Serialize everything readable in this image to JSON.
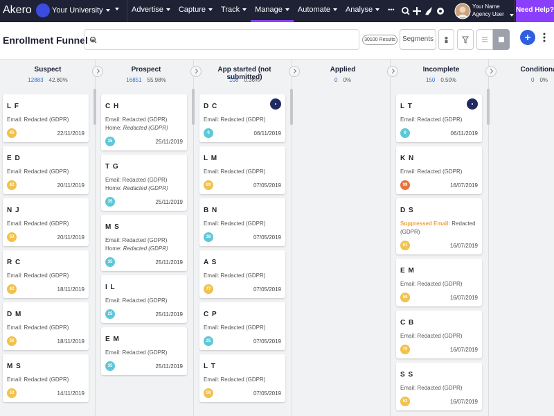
{
  "nav": {
    "logo": "Akero",
    "university": "Your University",
    "dot": ".",
    "menu": [
      {
        "label": "Advertise",
        "active": false
      },
      {
        "label": "Capture",
        "active": false
      },
      {
        "label": "Track",
        "active": false
      },
      {
        "label": "Manage",
        "active": true
      },
      {
        "label": "Automate",
        "active": false
      },
      {
        "label": "Analyse",
        "active": false
      }
    ],
    "more": "•••",
    "user_name": "Your Name",
    "user_role": "Agency User",
    "help": "Need Help?"
  },
  "toolbar": {
    "title": "Enrollment Funnel",
    "results": "30100 Results",
    "segments": "Segments"
  },
  "columns": [
    {
      "name": "Suspect",
      "count": "12883",
      "percent": "42.80%",
      "cards": [
        {
          "initials": "L F",
          "lines": [
            {
              "label": "Email:",
              "value": "Redacted (GDPR)"
            }
          ],
          "score": "45",
          "score_color": "#f2c14e",
          "date": "22/11/2019"
        },
        {
          "initials": "E D",
          "lines": [
            {
              "label": "Email:",
              "value": "Redacted (GDPR)"
            }
          ],
          "score": "62",
          "score_color": "#f2c14e",
          "date": "20/11/2019"
        },
        {
          "initials": "N J",
          "lines": [
            {
              "label": "Email:",
              "value": "Redacted (GDPR)"
            }
          ],
          "score": "53",
          "score_color": "#f2c14e",
          "date": "20/11/2019"
        },
        {
          "initials": "R C",
          "lines": [
            {
              "label": "Email:",
              "value": "Redacted (GDPR)"
            }
          ],
          "score": "62",
          "score_color": "#f2c14e",
          "date": "18/11/2019"
        },
        {
          "initials": "D M",
          "lines": [
            {
              "label": "Email:",
              "value": "Redacted (GDPR)"
            }
          ],
          "score": "56",
          "score_color": "#f2c14e",
          "date": "18/11/2019"
        },
        {
          "initials": "M S",
          "lines": [
            {
              "label": "Email:",
              "value": "Redacted (GDPR)"
            }
          ],
          "score": "53",
          "score_color": "#f2c14e",
          "date": "14/11/2019"
        }
      ]
    },
    {
      "name": "Prospect",
      "count": "16851",
      "percent": "55.98%",
      "cards": [
        {
          "initials": "C H",
          "lines": [
            {
              "label": "Email:",
              "value": "Redacted (GDPR)"
            },
            {
              "label": "Home:",
              "value": "Redacted (GDPR)",
              "italic": true
            }
          ],
          "score": "35",
          "score_color": "#5ec8d8",
          "date": "25/11/2019"
        },
        {
          "initials": "T G",
          "lines": [
            {
              "label": "Email:",
              "value": "Redacted (GDPR)"
            },
            {
              "label": "Home:",
              "value": "Redacted (GDPR)",
              "italic": true
            }
          ],
          "score": "35",
          "score_color": "#5ec8d8",
          "date": "25/11/2019"
        },
        {
          "initials": "M S",
          "lines": [
            {
              "label": "Email:",
              "value": "Redacted (GDPR)"
            },
            {
              "label": "Home:",
              "value": "Redacted (GDPR)",
              "italic": true
            }
          ],
          "score": "35",
          "score_color": "#5ec8d8",
          "date": "25/11/2019"
        },
        {
          "initials": "I L",
          "lines": [
            {
              "label": "Email:",
              "value": "Redacted (GDPR)"
            }
          ],
          "score": "25",
          "score_color": "#5ec8d8",
          "date": "25/11/2019"
        },
        {
          "initials": "E M",
          "lines": [
            {
              "label": "Email:",
              "value": "Redacted (GDPR)"
            }
          ],
          "score": "35",
          "score_color": "#5ec8d8",
          "date": "25/11/2019"
        }
      ]
    },
    {
      "name": "App started (not submitted)",
      "count": "108",
      "percent": "0.36%",
      "cards": [
        {
          "initials": "D C",
          "indicator": true,
          "lines": [
            {
              "label": "Email:",
              "value": "Redacted (GDPR)"
            }
          ],
          "score": "0",
          "score_color": "#5ec8d8",
          "date": "06/11/2019"
        },
        {
          "initials": "L M",
          "lines": [
            {
              "label": "Email:",
              "value": "Redacted (GDPR)"
            }
          ],
          "score": "89",
          "score_color": "#f2c14e",
          "date": "07/05/2019"
        },
        {
          "initials": "B N",
          "lines": [
            {
              "label": "Email:",
              "value": "Redacted (GDPR)"
            }
          ],
          "score": "38",
          "score_color": "#5ec8d8",
          "date": "07/05/2019"
        },
        {
          "initials": "A S",
          "lines": [
            {
              "label": "Email:",
              "value": "Redacted (GDPR)"
            }
          ],
          "score": "77",
          "score_color": "#f2c14e",
          "date": "07/05/2019"
        },
        {
          "initials": "C P",
          "lines": [
            {
              "label": "Email:",
              "value": "Redacted (GDPR)"
            }
          ],
          "score": "25",
          "score_color": "#5ec8d8",
          "date": "07/05/2019"
        },
        {
          "initials": "L T",
          "lines": [
            {
              "label": "Email:",
              "value": "Redacted (GDPR)"
            }
          ],
          "score": "56",
          "score_color": "#f2c14e",
          "date": "07/05/2019"
        }
      ]
    },
    {
      "name": "Applied",
      "count": "0",
      "percent": "0%",
      "cards": []
    },
    {
      "name": "Incomplete",
      "count": "150",
      "percent": "0.50%",
      "cards": [
        {
          "initials": "L T",
          "indicator": true,
          "lines": [
            {
              "label": "Email:",
              "value": "Redacted (GDPR)"
            }
          ],
          "score": "0",
          "score_color": "#5ec8d8",
          "date": "06/11/2019"
        },
        {
          "initials": "K N",
          "lines": [
            {
              "label": "Email:",
              "value": "Redacted (GDPR)"
            }
          ],
          "score": "99",
          "score_color": "#e8743b",
          "date": "16/07/2019"
        },
        {
          "initials": "D S",
          "lines": [
            {
              "label": "Suppressed Email:",
              "value": "Redacted (GDPR)",
              "label_color": "#f0a030"
            }
          ],
          "score": "61",
          "score_color": "#f2c14e",
          "date": "16/07/2019"
        },
        {
          "initials": "E M",
          "lines": [
            {
              "label": "Email:",
              "value": "Redacted (GDPR)"
            }
          ],
          "score": "58",
          "score_color": "#f2c14e",
          "date": "16/07/2019"
        },
        {
          "initials": "C B",
          "lines": [
            {
              "label": "Email:",
              "value": "Redacted (GDPR)"
            }
          ],
          "score": "70",
          "score_color": "#f2c14e",
          "date": "16/07/2019"
        },
        {
          "initials": "S S",
          "lines": [
            {
              "label": "Email:",
              "value": "Redacted (GDPR)"
            }
          ],
          "score": "53",
          "score_color": "#f2c14e",
          "date": "16/07/2019"
        }
      ]
    },
    {
      "name": "Conditional",
      "count": "0",
      "percent": "0%",
      "cards": []
    }
  ]
}
